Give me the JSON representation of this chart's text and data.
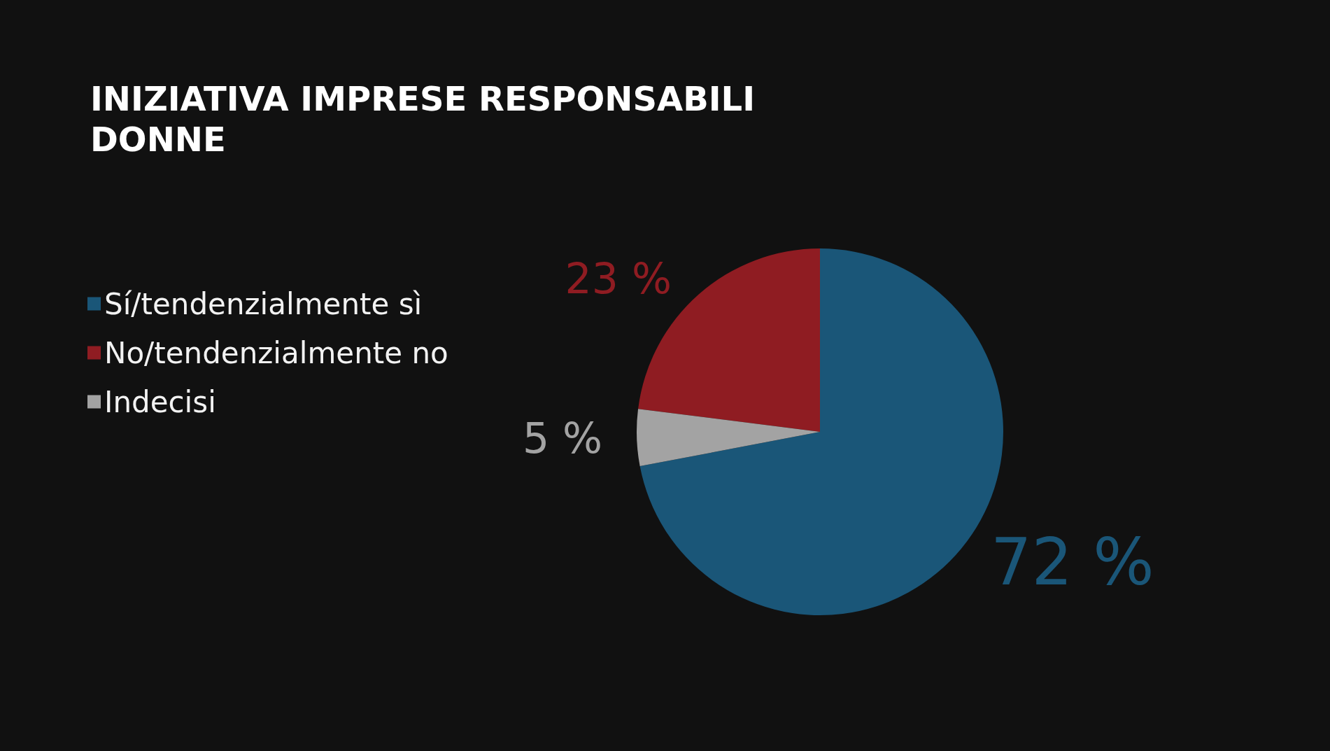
{
  "chart_data": {
    "type": "pie",
    "title": "INIZIATIVA IMPRESE RESPONSABILI",
    "subtitle": "DONNE",
    "categories": [
      "Sí/tendenzialmente sì",
      "No/tendenzialmente no",
      "Indecisi"
    ],
    "values": [
      72,
      23,
      5
    ],
    "colors": [
      "#1a5678",
      "#8f1c22",
      "#a3a3a3"
    ],
    "value_labels": [
      "72 %",
      "23 %",
      "5 %"
    ],
    "legend": "left"
  }
}
